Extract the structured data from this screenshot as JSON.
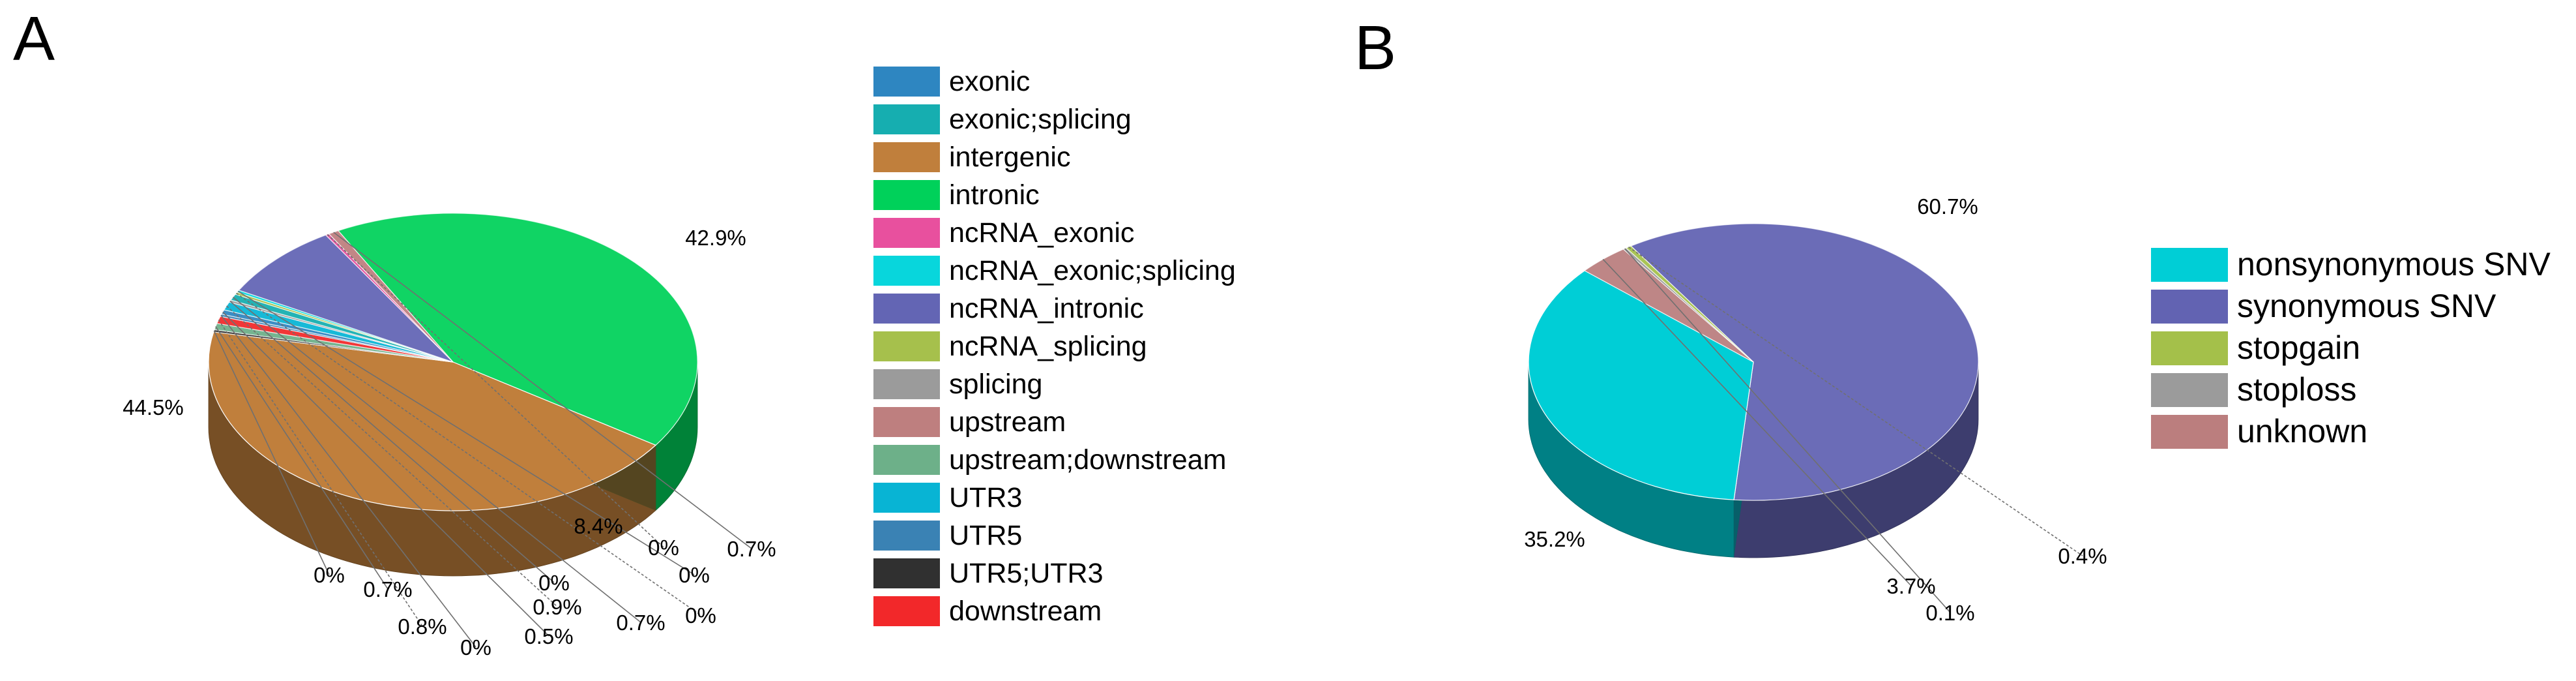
{
  "panels": {
    "a": "A",
    "b": "B"
  },
  "chart_data": [
    {
      "type": "pie",
      "panel": "A",
      "legend_placement": "right",
      "categories": [
        "exonic",
        "exonic;splicing",
        "intergenic",
        "intronic",
        "ncRNA_exonic",
        "ncRNA_exonic;splicing",
        "ncRNA_intronic",
        "ncRNA_splicing",
        "splicing",
        "upstream",
        "upstream;downstream",
        "UTR3",
        "UTR5",
        "UTR5;UTR3",
        "downstream"
      ],
      "colors": [
        "#2e86c1",
        "#16aeb0",
        "#c07f3c",
        "#00d15a",
        "#e8509e",
        "#08d6dc",
        "#6365b4",
        "#a6c04c",
        "#9b9b9b",
        "#be7f7f",
        "#6db089",
        "#08b4d4",
        "#3a82b4",
        "#303030",
        "#f2282a"
      ],
      "slices": [
        {
          "category": "intronic",
          "label": "42.9%",
          "value": 42.9
        },
        {
          "category": "intergenic",
          "label": "44.5%",
          "value": 44.5
        },
        {
          "category": "UTR5;UTR3",
          "label": "0%",
          "value": 0
        },
        {
          "category": "upstream;downstream",
          "label": "0.7%",
          "value": 0.7
        },
        {
          "category": "downstream",
          "label": "0.8%",
          "value": 0.8
        },
        {
          "category": "UTR5",
          "label": "0%",
          "value": 0
        },
        {
          "category": "exonic",
          "label": "0.5%",
          "value": 0.5
        },
        {
          "category": "UTR3",
          "label": "0.9%",
          "value": 0.9
        },
        {
          "category": "splicing",
          "label": "0%",
          "value": 0
        },
        {
          "category": "exonic;splicing",
          "label": "0.7%",
          "value": 0.7
        },
        {
          "category": "ncRNA_splicing",
          "label": "0%",
          "value": 0
        },
        {
          "category": "ncRNA_exonic;splicing",
          "label": "0%",
          "value": 0
        },
        {
          "category": "ncRNA_intronic",
          "label": "8.4%",
          "value": 8.4
        },
        {
          "category": "ncRNA_exonic",
          "label": "0%",
          "value": 0
        },
        {
          "category": "upstream",
          "label": "0.7%",
          "value": 0.7
        }
      ]
    },
    {
      "type": "pie",
      "panel": "B",
      "legend_placement": "right",
      "categories": [
        "nonsynonymous SNV",
        "synonymous SNV",
        "stopgain",
        "stoploss",
        "unknown"
      ],
      "colors": [
        "#00ced6",
        "#6263b2",
        "#a4c04a",
        "#9b9b9b",
        "#bb7e7e"
      ],
      "slices": [
        {
          "category": "synonymous SNV",
          "label": "60.7%",
          "value": 60.7
        },
        {
          "category": "nonsynonymous SNV",
          "label": "35.2%",
          "value": 35.2
        },
        {
          "category": "unknown",
          "label": "3.7%",
          "value": 3.7
        },
        {
          "category": "stoploss",
          "label": "0.1%",
          "value": 0.1
        },
        {
          "category": "stopgain",
          "label": "0.4%",
          "value": 0.4
        }
      ]
    }
  ]
}
